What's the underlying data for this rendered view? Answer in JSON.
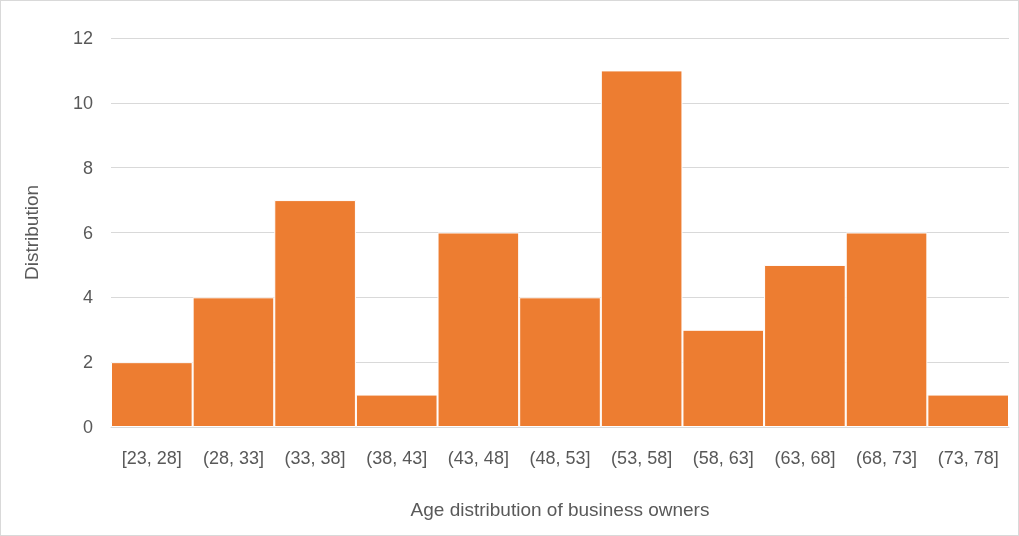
{
  "chart_data": {
    "type": "bar",
    "xlabel": "Age distribution of business owners",
    "ylabel": "Distribution",
    "categories": [
      "[23, 28]",
      "(28, 33]",
      "(33, 38]",
      "(38, 43]",
      "(43, 48]",
      "(48, 53]",
      "(53, 58]",
      "(58, 63]",
      "(63, 68]",
      "(68, 73]",
      "(73, 78]"
    ],
    "values": [
      2,
      4,
      7,
      1,
      6,
      4,
      11,
      3,
      5,
      6,
      1
    ],
    "color": "#ed7d31",
    "ylim": [
      0,
      12
    ],
    "yticks": [
      0,
      2,
      4,
      6,
      8,
      10,
      12
    ],
    "grid": "y"
  }
}
